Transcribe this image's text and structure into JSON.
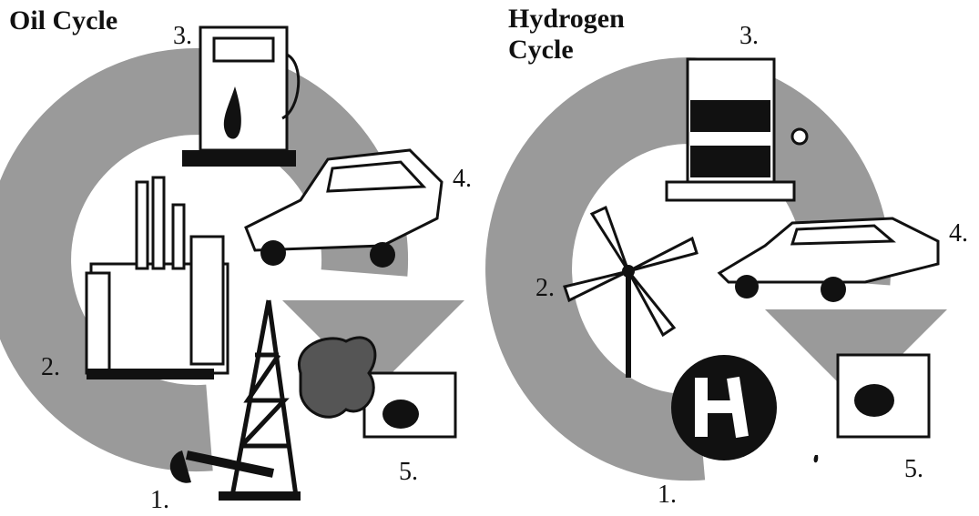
{
  "panels": [
    {
      "title": [
        "Oil Cycle"
      ],
      "steps": [
        "1.",
        "2.",
        "3.",
        "4.",
        "5."
      ]
    },
    {
      "title": [
        "Hydrogen",
        "Cycle"
      ],
      "steps": [
        "1.",
        "2.",
        "3.",
        "4.",
        "5."
      ]
    }
  ]
}
